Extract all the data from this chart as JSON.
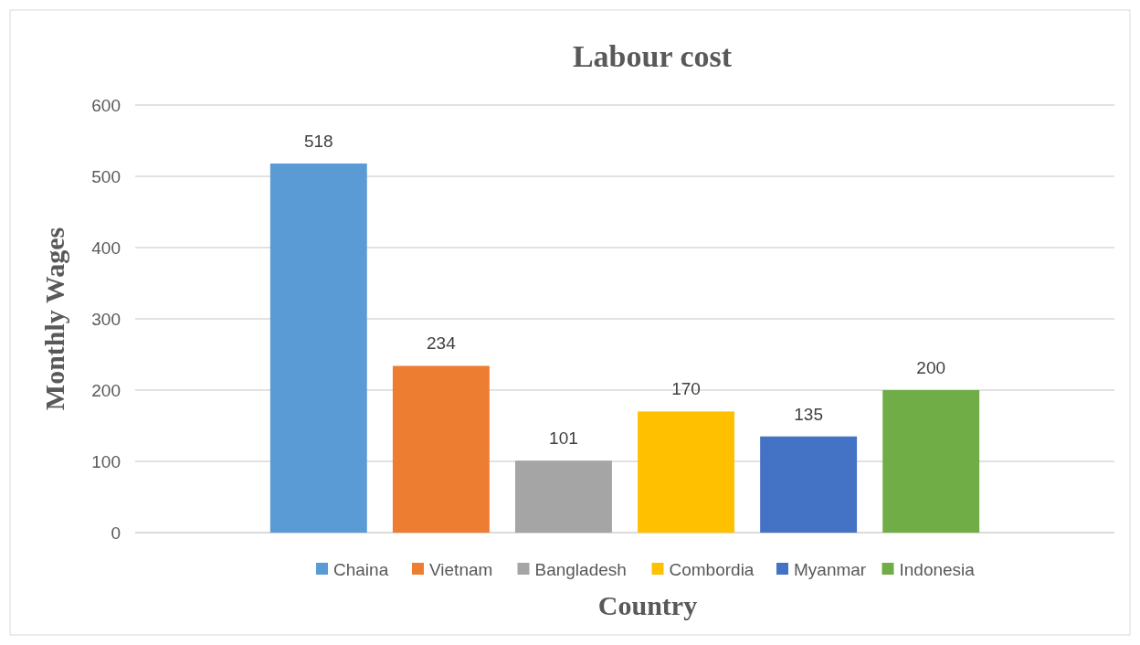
{
  "chart_data": {
    "type": "bar",
    "title": "Labour cost",
    "xlabel": "Country",
    "ylabel": "Monthly Wages",
    "categories": [
      null
    ],
    "series": [
      {
        "name": "Chaina",
        "color": "#5b9bd5",
        "values": [
          518
        ]
      },
      {
        "name": "Vietnam",
        "color": "#ed7d31",
        "values": [
          234
        ]
      },
      {
        "name": "Bangladesh",
        "color": "#a5a5a5",
        "values": [
          101
        ]
      },
      {
        "name": "Combordia",
        "color": "#ffc000",
        "values": [
          170
        ]
      },
      {
        "name": "Myanmar",
        "color": "#4472c4",
        "values": [
          135
        ]
      },
      {
        "name": "Indonesia",
        "color": "#70ad47",
        "values": [
          200
        ]
      }
    ],
    "ylim": [
      0,
      600
    ],
    "yticks": [
      0,
      100,
      200,
      300,
      400,
      500,
      600
    ],
    "grid": "y",
    "legend": "bottom",
    "data_labels": true
  }
}
